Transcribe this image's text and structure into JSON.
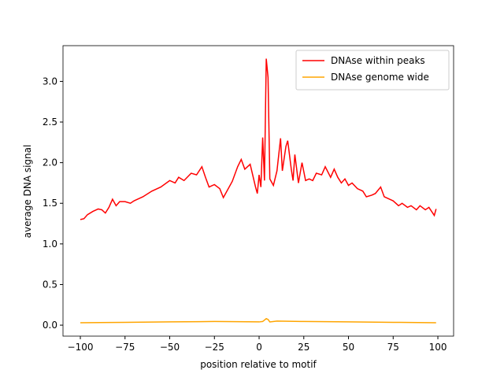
{
  "chart_data": {
    "type": "line",
    "xlabel": "position relative to motif",
    "ylabel": "average DNA signal",
    "xlim": [
      -109.7,
      108.8
    ],
    "ylim": [
      -0.135,
      3.44
    ],
    "xticks": [
      {
        "value": -100,
        "label": "−100"
      },
      {
        "value": -75,
        "label": "−75"
      },
      {
        "value": -50,
        "label": "−50"
      },
      {
        "value": -25,
        "label": "−25"
      },
      0,
      25,
      50,
      75,
      100
    ],
    "yticks": [
      {
        "value": 0,
        "label": "0.0"
      },
      0.5,
      {
        "value": 1,
        "label": "1.0"
      },
      1.5,
      {
        "value": 2,
        "label": "2.0"
      },
      2.5,
      {
        "value": 3,
        "label": "3.0"
      }
    ],
    "legend": "upper right",
    "series": [
      {
        "name": "DNAse within peaks",
        "color": "#ff0000",
        "x": [
          -100,
          -98,
          -96,
          -93,
          -90,
          -88,
          -86,
          -84,
          -82,
          -80,
          -78,
          -75,
          -72,
          -70,
          -65,
          -60,
          -55,
          -50,
          -47,
          -45,
          -42,
          -38,
          -35,
          -32,
          -30,
          -28,
          -25,
          -22,
          -20,
          -15,
          -12,
          -10,
          -8,
          -5,
          -2,
          -1,
          0,
          1,
          2,
          3,
          4,
          5,
          6,
          8,
          10,
          12,
          13,
          15,
          16,
          18,
          19,
          20,
          22,
          24,
          26,
          28,
          30,
          32,
          35,
          37,
          40,
          42,
          44,
          46,
          48,
          50,
          52,
          55,
          58,
          60,
          63,
          65,
          68,
          70,
          75,
          78,
          80,
          83,
          85,
          88,
          90,
          93,
          95,
          98,
          99
        ],
        "values": [
          1.3,
          1.31,
          1.36,
          1.4,
          1.43,
          1.42,
          1.38,
          1.45,
          1.55,
          1.47,
          1.52,
          1.52,
          1.5,
          1.53,
          1.58,
          1.65,
          1.7,
          1.78,
          1.75,
          1.82,
          1.78,
          1.87,
          1.85,
          1.95,
          1.82,
          1.7,
          1.73,
          1.68,
          1.57,
          1.77,
          1.95,
          2.04,
          1.92,
          1.98,
          1.7,
          1.62,
          1.85,
          1.7,
          2.31,
          1.78,
          3.28,
          3.05,
          1.8,
          1.72,
          1.9,
          2.3,
          1.9,
          2.2,
          2.27,
          1.92,
          1.78,
          2.1,
          1.75,
          2.0,
          1.78,
          1.8,
          1.78,
          1.87,
          1.85,
          1.95,
          1.82,
          1.92,
          1.82,
          1.75,
          1.8,
          1.72,
          1.75,
          1.68,
          1.65,
          1.58,
          1.6,
          1.62,
          1.7,
          1.58,
          1.53,
          1.47,
          1.5,
          1.45,
          1.47,
          1.42,
          1.47,
          1.42,
          1.45,
          1.35,
          1.43
        ]
      },
      {
        "name": "DNAse genome wide",
        "color": "#ffa500",
        "x": [
          -100,
          -75,
          -50,
          -25,
          0,
          2,
          4,
          5,
          6,
          10,
          25,
          50,
          75,
          99
        ],
        "values": [
          0.03,
          0.035,
          0.04,
          0.045,
          0.04,
          0.045,
          0.08,
          0.07,
          0.04,
          0.05,
          0.045,
          0.04,
          0.035,
          0.03
        ]
      }
    ]
  }
}
